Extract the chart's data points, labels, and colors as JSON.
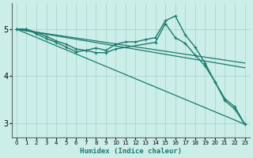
{
  "xlabel": "Humidex (Indice chaleur)",
  "background_color": "#cceee8",
  "line_color": "#1a7a6e",
  "grid_color": "#aad4ce",
  "xlim": [
    -0.5,
    23.5
  ],
  "ylim": [
    2.7,
    5.55
  ],
  "yticks": [
    3,
    4,
    5
  ],
  "xticks": [
    0,
    1,
    2,
    3,
    4,
    5,
    6,
    7,
    8,
    9,
    10,
    11,
    12,
    13,
    14,
    15,
    16,
    17,
    18,
    19,
    20,
    21,
    22,
    23
  ],
  "lines": [
    {
      "x": [
        0,
        1,
        2,
        3,
        4,
        5,
        6,
        7,
        8,
        9,
        10,
        11,
        12,
        13,
        14,
        15,
        16,
        17,
        18,
        19,
        20,
        21,
        22,
        23
      ],
      "y": [
        5.0,
        5.0,
        4.93,
        4.85,
        4.75,
        4.68,
        4.58,
        4.55,
        4.6,
        4.55,
        4.68,
        4.73,
        4.73,
        4.78,
        4.82,
        5.18,
        5.28,
        4.88,
        4.62,
        4.28,
        3.88,
        3.52,
        3.35,
        2.98
      ],
      "marker": "+",
      "markersize": 3.5,
      "linewidth": 1.0
    },
    {
      "x": [
        0,
        1,
        2,
        3,
        4,
        5,
        6,
        7,
        8,
        9,
        10,
        14,
        15,
        16,
        17,
        18,
        19,
        20,
        21,
        22,
        23
      ],
      "y": [
        5.0,
        5.0,
        4.9,
        4.8,
        4.72,
        4.62,
        4.52,
        4.55,
        4.5,
        4.5,
        4.58,
        4.72,
        5.12,
        4.82,
        4.7,
        4.45,
        4.22,
        3.88,
        3.48,
        3.3,
        2.98
      ],
      "marker": "+",
      "markersize": 3.5,
      "linewidth": 1.0
    },
    {
      "x": [
        0,
        23
      ],
      "y": [
        5.0,
        4.28
      ],
      "marker": null,
      "markersize": 0,
      "linewidth": 0.9
    },
    {
      "x": [
        0,
        23
      ],
      "y": [
        5.0,
        4.18
      ],
      "marker": null,
      "markersize": 0,
      "linewidth": 0.9
    },
    {
      "x": [
        0,
        23
      ],
      "y": [
        5.0,
        2.98
      ],
      "marker": null,
      "markersize": 0,
      "linewidth": 0.9
    }
  ]
}
